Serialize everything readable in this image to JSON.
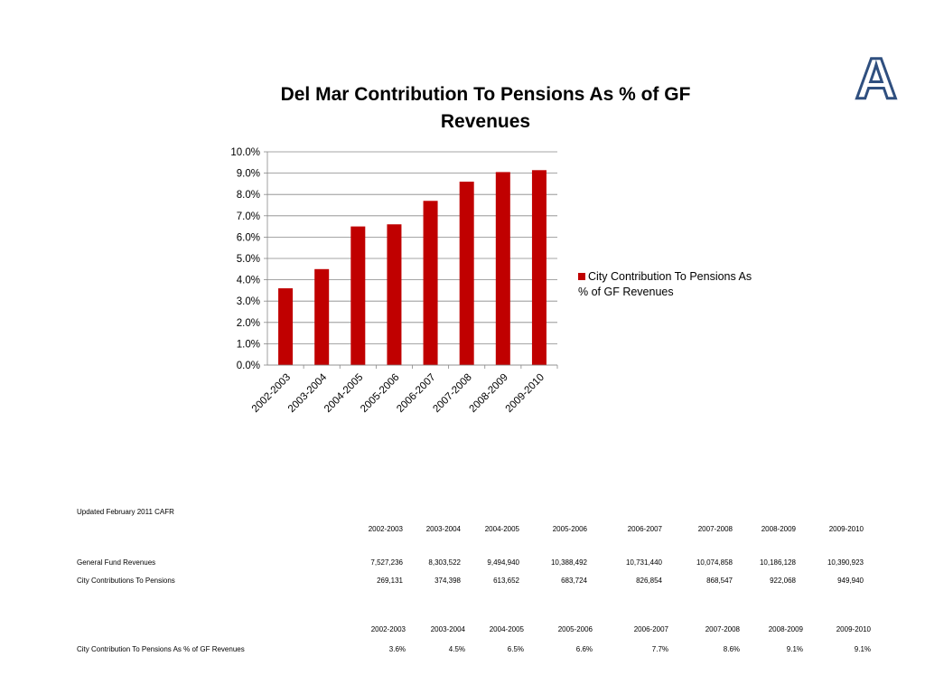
{
  "corner_letter": "A",
  "colors": {
    "bar": "#c00000",
    "grid": "#888888",
    "axis": "#888888",
    "corner_letter_fill": "#ffffff",
    "corner_letter_stroke": "#2f4f7f"
  },
  "chart_data": {
    "type": "bar",
    "title": "Del Mar Contribution To Pensions As % of GF Revenues",
    "xlabel": "",
    "ylabel": "",
    "ylim": [
      0,
      10
    ],
    "y_ticks": [
      "0.0%",
      "1.0%",
      "2.0%",
      "3.0%",
      "4.0%",
      "5.0%",
      "6.0%",
      "7.0%",
      "8.0%",
      "9.0%",
      "10.0%"
    ],
    "categories": [
      "2002-2003",
      "2003-2004",
      "2004-2005",
      "2005-2006",
      "2006-2007",
      "2007-2008",
      "2008-2009",
      "2009-2010"
    ],
    "series": [
      {
        "name": "City Contribution To Pensions As % of GF Revenues",
        "values": [
          3.6,
          4.5,
          6.5,
          6.6,
          7.7,
          8.6,
          9.05,
          9.14
        ]
      }
    ],
    "grid": true,
    "legend_position": "right"
  },
  "table": {
    "updated_label": "Updated February 2011 CAFR",
    "years": [
      "2002-2003",
      "2003-2004",
      "2004-2005",
      "2005-2006",
      "2006-2007",
      "2007-2008",
      "2008-2009",
      "2009-2010"
    ],
    "rows": [
      {
        "label": "General Fund Revenues",
        "values": [
          "7,527,236",
          "8,303,522",
          "9,494,940",
          "10,388,492",
          "10,731,440",
          "10,074,858",
          "10,186,128",
          "10,390,923"
        ]
      },
      {
        "label": "City Contributions To Pensions",
        "values": [
          "269,131",
          "374,398",
          "613,652",
          "683,724",
          "826,854",
          "868,547",
          "922,068",
          "949,940"
        ]
      }
    ],
    "percent_years": [
      "2002-2003",
      "2003-2004",
      "2004-2005",
      "2005-2006",
      "2006-2007",
      "2007-2008",
      "2008-2009",
      "2009-2010"
    ],
    "percent_row": {
      "label": "City Contribution To Pensions As % of GF Revenues",
      "values": [
        "3.6%",
        "4.5%",
        "6.5%",
        "6.6%",
        "7.7%",
        "8.6%",
        "9.1%",
        "9.1%"
      ]
    }
  }
}
